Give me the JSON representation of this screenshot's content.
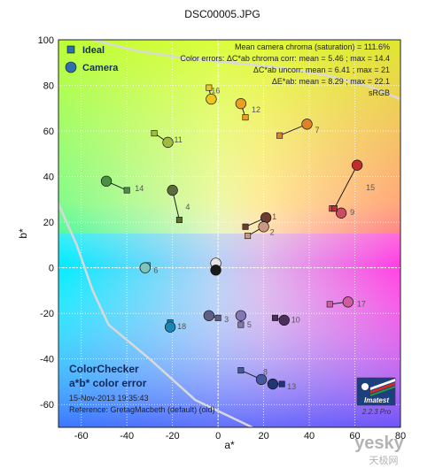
{
  "chart_data": {
    "type": "scatter",
    "title": "DSC00005.JPG",
    "xlabel": "a*",
    "ylabel": "b*",
    "xlim": [
      -70,
      80
    ],
    "ylim": [
      -70,
      100
    ],
    "xticks": [
      -60,
      -40,
      -20,
      0,
      20,
      40,
      60,
      80
    ],
    "yticks": [
      -60,
      -40,
      -20,
      0,
      20,
      40,
      60,
      80,
      100
    ],
    "grid": true,
    "legend_placement": "top-left",
    "legend": {
      "ideal": "Ideal",
      "camera": "Camera"
    },
    "stats": {
      "line1": "Mean camera chroma (saturation) = 111.6%",
      "line2": "Color errors: ΔC*ab chroma corr:  mean = 5.46 ;  max = 14.4",
      "line3": "ΔC*ab uncorr:  mean = 6.41 ;  max = 21",
      "line4": "ΔE*ab:  mean = 8.29 ;  max = 22.1",
      "line5": "sRGB"
    },
    "footer": {
      "line1": "ColorChecker",
      "line2": "a*b* color error",
      "line3": "15-Nov-2013 19:35:43",
      "line4": "Reference: GretagMacbeth (default) (old)"
    },
    "logo": {
      "name": "Imatest",
      "version": "2.2.3  Pro"
    },
    "watermark": {
      "text": "yesky",
      "sub": "天极网"
    },
    "patches": [
      {
        "n": "1",
        "ideal": [
          12,
          18
        ],
        "camera": [
          21,
          22
        ],
        "color": "#6e3a32"
      },
      {
        "n": "2",
        "ideal": [
          13,
          14
        ],
        "camera": [
          20,
          18
        ],
        "color": "#c99882"
      },
      {
        "n": "4",
        "ideal": [
          -17,
          21
        ],
        "camera": [
          -20,
          34
        ],
        "color": "#5b6b3a"
      },
      {
        "n": "5",
        "ideal": [
          10,
          -25
        ],
        "camera": [
          10,
          -21
        ],
        "color": "#8177b1"
      },
      {
        "n": "6",
        "ideal": [
          -31,
          1
        ],
        "camera": [
          -32,
          0
        ],
        "color": "#7fc4b9"
      },
      {
        "n": "7",
        "ideal": [
          27,
          58
        ],
        "camera": [
          39,
          63
        ],
        "color": "#e28228"
      },
      {
        "n": "8",
        "ideal": [
          10,
          -45
        ],
        "camera": [
          19,
          -49
        ],
        "color": "#45589e"
      },
      {
        "n": "9",
        "ideal": [
          50,
          26
        ],
        "camera": [
          54,
          24
        ],
        "color": "#cc4a63"
      },
      {
        "n": "10",
        "ideal": [
          25,
          -22
        ],
        "camera": [
          29,
          -23
        ],
        "color": "#4d2d5c"
      },
      {
        "n": "11",
        "ideal": [
          -28,
          59
        ],
        "camera": [
          -22,
          55
        ],
        "color": "#a1bb42"
      },
      {
        "n": "12",
        "ideal": [
          12,
          66
        ],
        "camera": [
          10,
          72
        ],
        "color": "#eba020"
      },
      {
        "n": "13",
        "ideal": [
          28,
          -51
        ],
        "camera": [
          24,
          -51
        ],
        "color": "#1f3575"
      },
      {
        "n": "14",
        "ideal": [
          -40,
          34
        ],
        "camera": [
          -49,
          38
        ],
        "color": "#4a9040"
      },
      {
        "n": "15",
        "ideal": [
          51,
          26
        ],
        "camera": [
          61,
          45
        ],
        "color": "#c12d2c"
      },
      {
        "n": "16",
        "ideal": [
          -4,
          79
        ],
        "camera": [
          -3,
          74
        ],
        "color": "#eec51c"
      },
      {
        "n": "17",
        "ideal": [
          49,
          -16
        ],
        "camera": [
          57,
          -15
        ],
        "color": "#cf5c9d"
      },
      {
        "n": "18",
        "ideal": [
          -21,
          -24
        ],
        "camera": [
          -21,
          -26
        ],
        "color": "#1a86b8"
      },
      {
        "n": "",
        "ideal": [
          -1,
          0
        ],
        "camera": [
          -1,
          2
        ],
        "color": "#e6e6e6"
      },
      {
        "n": "",
        "ideal": [
          -1,
          -1
        ],
        "camera": [
          -1,
          -1
        ],
        "color": "#1a1a1a"
      }
    ],
    "label_offsets": {
      "1": [
        5,
        -3
      ],
      "2": [
        5,
        4
      ],
      "3": [
        5,
        6
      ],
      "4": [
        5,
        5
      ],
      "5": [
        5,
        8
      ],
      "6": [
        5,
        7
      ],
      "7": [
        7,
        3
      ],
      "8": [
        0,
        0
      ],
      "9": [
        8,
        5
      ],
      "10": [
        6,
        4
      ],
      "11": [
        5,
        5
      ],
      "12": [
        5,
        2
      ],
      "13": [
        4,
        6
      ],
      "14": [
        7,
        6
      ],
      "15": [
        8,
        4
      ],
      "16": [
        -2,
        0
      ],
      "17": [
        8,
        4
      ],
      "18": [
        6,
        5
      ]
    },
    "extra_labels": [
      {
        "n": "3",
        "ideal": [
          0,
          -22
        ],
        "camera": [
          -4,
          -21
        ],
        "color": "#5e5e87"
      }
    ],
    "sRGB_gamut": [
      [
        -55,
        100
      ],
      [
        -35,
        95
      ],
      [
        -15,
        92
      ],
      [
        5,
        90
      ],
      [
        25,
        88
      ],
      [
        45,
        85
      ],
      [
        65,
        80
      ],
      [
        80,
        74
      ]
    ],
    "gamut_lower": [
      [
        -70,
        28
      ],
      [
        -62,
        10
      ],
      [
        -55,
        -10
      ],
      [
        -48,
        -25
      ],
      [
        -30,
        -40
      ],
      [
        -10,
        -58
      ],
      [
        15,
        -70
      ]
    ]
  }
}
